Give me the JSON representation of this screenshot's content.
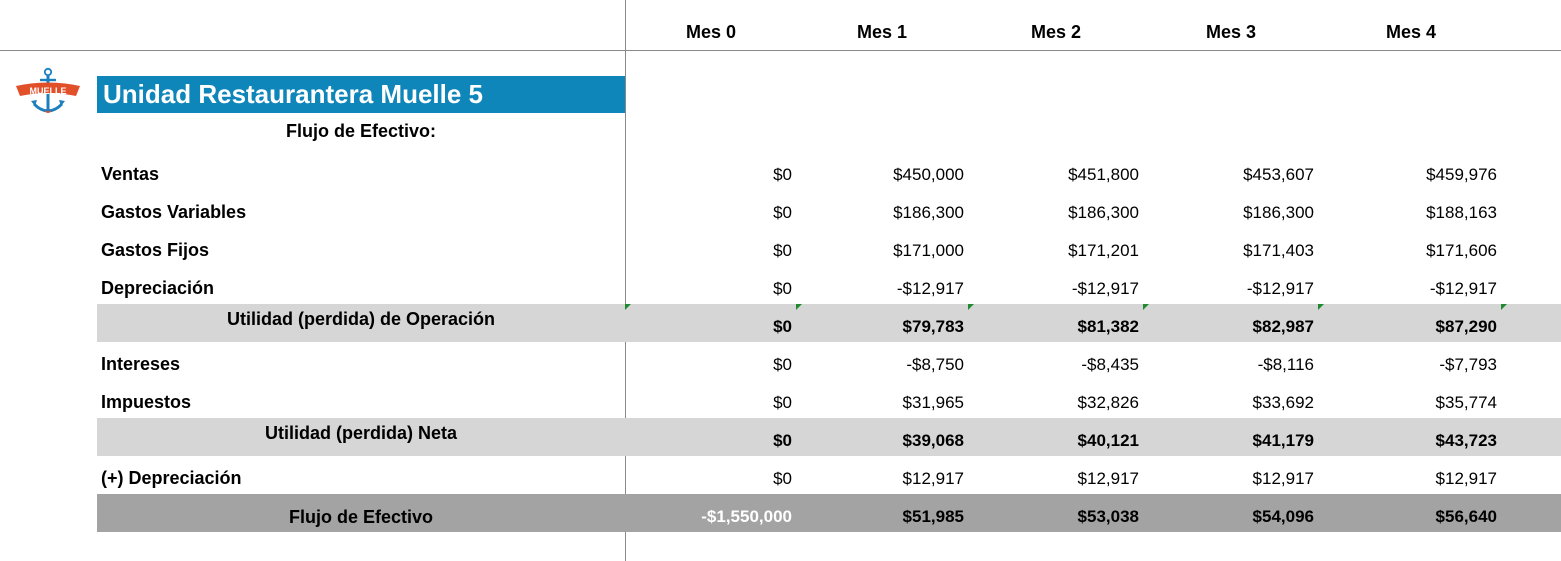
{
  "months": [
    "Mes 0",
    "Mes 1",
    "Mes 2",
    "Mes 3",
    "Mes 4"
  ],
  "logo_text": "MUELLE",
  "title": "Unidad Restaurantera Muelle 5",
  "subtitle": "Flujo de Efectivo:",
  "colors": {
    "title_bar": "#0f86b9",
    "subtotal_band": "#d6d6d6",
    "total_band": "#a3a3a3",
    "marker": "#1f8a2f"
  },
  "rows": [
    {
      "label": "Ventas",
      "values": [
        "$0",
        "$450,000",
        "$451,800",
        "$453,607",
        "$459,976"
      ]
    },
    {
      "label": "Gastos Variables",
      "values": [
        "$0",
        "$186,300",
        "$186,300",
        "$186,300",
        "$188,163"
      ]
    },
    {
      "label": "Gastos Fijos",
      "values": [
        "$0",
        "$171,000",
        "$171,201",
        "$171,403",
        "$171,606"
      ]
    },
    {
      "label": "Depreciación",
      "values": [
        "$0",
        "-$12,917",
        "-$12,917",
        "-$12,917",
        "-$12,917"
      ]
    },
    {
      "label": "Utilidad (perdida) de Operación",
      "values": [
        "$0",
        "$79,783",
        "$81,382",
        "$82,987",
        "$87,290"
      ]
    },
    {
      "label": "Intereses",
      "values": [
        "$0",
        "-$8,750",
        "-$8,435",
        "-$8,116",
        "-$7,793"
      ]
    },
    {
      "label": "Impuestos",
      "values": [
        "$0",
        "$31,965",
        "$32,826",
        "$33,692",
        "$35,774"
      ]
    },
    {
      "label": "Utilidad (perdida) Neta",
      "values": [
        "$0",
        "$39,068",
        "$40,121",
        "$41,179",
        "$43,723"
      ]
    },
    {
      "label": "(+) Depreciación",
      "values": [
        "$0",
        "$12,917",
        "$12,917",
        "$12,917",
        "$12,917"
      ]
    },
    {
      "label": "Flujo de Efectivo",
      "values": [
        "-$1,550,000",
        "$51,985",
        "$53,038",
        "$54,096",
        "$56,640"
      ]
    }
  ]
}
